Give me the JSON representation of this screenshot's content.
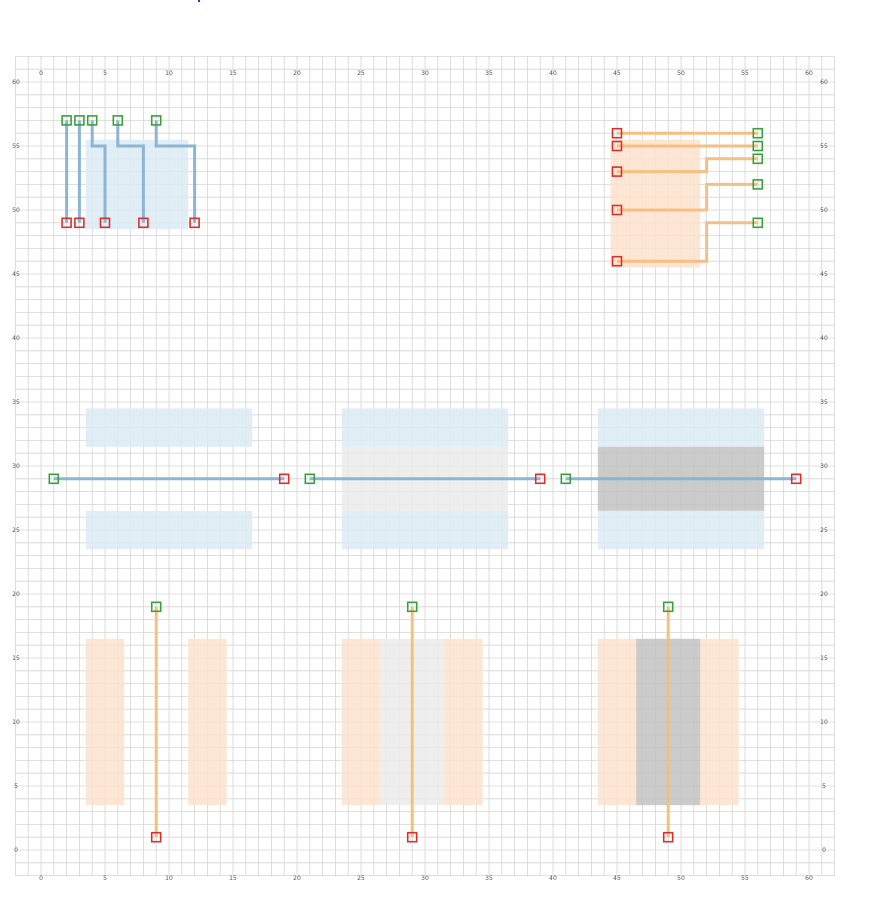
{
  "grid": {
    "x_min": 0,
    "x_max": 60,
    "y_min": 0,
    "y_max": 60,
    "x_ticks": [
      0,
      5,
      10,
      15,
      20,
      25,
      30,
      35,
      40,
      45,
      50,
      55,
      60
    ],
    "y_ticks": [
      0,
      5,
      10,
      15,
      20,
      25,
      30,
      35,
      40,
      45,
      50,
      55,
      60
    ],
    "x_tick_labels": [
      "0",
      "5",
      "10",
      "15",
      "20",
      "25",
      "30",
      "35",
      "40",
      "45",
      "50",
      "55",
      "60"
    ],
    "y_tick_labels": [
      "0",
      "5",
      "10",
      "15",
      "20",
      "25",
      "30",
      "35",
      "40",
      "45",
      "50",
      "55",
      "60"
    ]
  },
  "colors": {
    "grid_line": "#d6d6d6",
    "blue_route": "#86b2d2",
    "orange_route": "#f5bd7e",
    "blue_fill": "#dcebf5",
    "orange_fill": "#fde2cb",
    "light_gray_fill": "#ebebeb",
    "dark_gray_fill": "#c2c2c2",
    "start_pin": "#3aa23a",
    "end_pin": "#d93030"
  },
  "regions": [
    {
      "x0": 3.5,
      "x1": 11.5,
      "y0": 48.5,
      "y1": 55.5,
      "fill": "blue"
    },
    {
      "x0": 44.5,
      "x1": 51.5,
      "y0": 45.5,
      "y1": 55.5,
      "fill": "orange"
    },
    {
      "x0": 3.5,
      "x1": 16.5,
      "y0": 31.5,
      "y1": 34.5,
      "fill": "blue"
    },
    {
      "x0": 3.5,
      "x1": 16.5,
      "y0": 23.5,
      "y1": 26.5,
      "fill": "blue"
    },
    {
      "x0": 23.5,
      "x1": 36.5,
      "y0": 31.5,
      "y1": 34.5,
      "fill": "blue"
    },
    {
      "x0": 23.5,
      "x1": 36.5,
      "y0": 23.5,
      "y1": 26.5,
      "fill": "blue"
    },
    {
      "x0": 23.5,
      "x1": 36.5,
      "y0": 26.5,
      "y1": 31.5,
      "fill": "light_gray"
    },
    {
      "x0": 43.5,
      "x1": 56.5,
      "y0": 31.5,
      "y1": 34.5,
      "fill": "blue"
    },
    {
      "x0": 43.5,
      "x1": 56.5,
      "y0": 23.5,
      "y1": 26.5,
      "fill": "blue"
    },
    {
      "x0": 43.5,
      "x1": 56.5,
      "y0": 26.5,
      "y1": 31.5,
      "fill": "dark_gray"
    },
    {
      "x0": 3.5,
      "x1": 6.5,
      "y0": 3.5,
      "y1": 16.5,
      "fill": "orange"
    },
    {
      "x0": 11.5,
      "x1": 14.5,
      "y0": 3.5,
      "y1": 16.5,
      "fill": "orange"
    },
    {
      "x0": 23.5,
      "x1": 26.5,
      "y0": 3.5,
      "y1": 16.5,
      "fill": "orange"
    },
    {
      "x0": 31.5,
      "x1": 34.5,
      "y0": 3.5,
      "y1": 16.5,
      "fill": "orange"
    },
    {
      "x0": 26.5,
      "x1": 31.5,
      "y0": 3.5,
      "y1": 16.5,
      "fill": "light_gray"
    },
    {
      "x0": 43.5,
      "x1": 46.5,
      "y0": 3.5,
      "y1": 16.5,
      "fill": "orange"
    },
    {
      "x0": 51.5,
      "x1": 54.5,
      "y0": 3.5,
      "y1": 16.5,
      "fill": "orange"
    },
    {
      "x0": 46.5,
      "x1": 51.5,
      "y0": 3.5,
      "y1": 16.5,
      "fill": "dark_gray"
    }
  ],
  "routes": [
    {
      "color": "blue",
      "points": [
        [
          2,
          57
        ],
        [
          2,
          49
        ]
      ]
    },
    {
      "color": "blue",
      "points": [
        [
          3,
          57
        ],
        [
          3,
          49
        ]
      ]
    },
    {
      "color": "blue",
      "points": [
        [
          4,
          57
        ],
        [
          4,
          55
        ],
        [
          5,
          55
        ],
        [
          5,
          49
        ]
      ]
    },
    {
      "color": "blue",
      "points": [
        [
          6,
          57
        ],
        [
          6,
          55
        ],
        [
          8,
          55
        ],
        [
          8,
          49
        ]
      ]
    },
    {
      "color": "blue",
      "points": [
        [
          9,
          57
        ],
        [
          9,
          55
        ],
        [
          12,
          55
        ],
        [
          12,
          49
        ]
      ]
    },
    {
      "color": "orange",
      "points": [
        [
          45,
          56
        ],
        [
          56,
          56
        ]
      ]
    },
    {
      "color": "orange",
      "points": [
        [
          45,
          55
        ],
        [
          56,
          55
        ]
      ]
    },
    {
      "color": "orange",
      "points": [
        [
          45,
          53
        ],
        [
          52,
          53
        ],
        [
          52,
          54
        ],
        [
          56,
          54
        ]
      ]
    },
    {
      "color": "orange",
      "points": [
        [
          45,
          50
        ],
        [
          52,
          50
        ],
        [
          52,
          52
        ],
        [
          56,
          52
        ]
      ]
    },
    {
      "color": "orange",
      "points": [
        [
          45,
          46
        ],
        [
          52,
          46
        ],
        [
          52,
          49
        ],
        [
          56,
          49
        ]
      ]
    },
    {
      "color": "blue",
      "points": [
        [
          1,
          29
        ],
        [
          19,
          29
        ]
      ]
    },
    {
      "color": "blue",
      "points": [
        [
          21,
          29
        ],
        [
          39,
          29
        ]
      ]
    },
    {
      "color": "blue",
      "points": [
        [
          41,
          29
        ],
        [
          59,
          29
        ]
      ]
    },
    {
      "color": "orange",
      "points": [
        [
          9,
          19
        ],
        [
          9,
          1
        ]
      ]
    },
    {
      "color": "orange",
      "points": [
        [
          29,
          19
        ],
        [
          29,
          1
        ]
      ]
    },
    {
      "color": "orange",
      "points": [
        [
          49,
          19
        ],
        [
          49,
          1
        ]
      ]
    }
  ],
  "start_pins": [
    [
      2,
      57
    ],
    [
      3,
      57
    ],
    [
      4,
      57
    ],
    [
      6,
      57
    ],
    [
      9,
      57
    ],
    [
      56,
      56
    ],
    [
      56,
      55
    ],
    [
      56,
      54
    ],
    [
      56,
      52
    ],
    [
      56,
      49
    ],
    [
      1,
      29
    ],
    [
      21,
      29
    ],
    [
      41,
      29
    ],
    [
      9,
      19
    ],
    [
      29,
      19
    ],
    [
      49,
      19
    ]
  ],
  "end_pins": [
    [
      2,
      49
    ],
    [
      3,
      49
    ],
    [
      5,
      49
    ],
    [
      8,
      49
    ],
    [
      12,
      49
    ],
    [
      45,
      56
    ],
    [
      45,
      55
    ],
    [
      45,
      53
    ],
    [
      45,
      50
    ],
    [
      45,
      46
    ],
    [
      19,
      29
    ],
    [
      39,
      29
    ],
    [
      59,
      29
    ],
    [
      9,
      1
    ],
    [
      29,
      1
    ],
    [
      49,
      1
    ]
  ]
}
